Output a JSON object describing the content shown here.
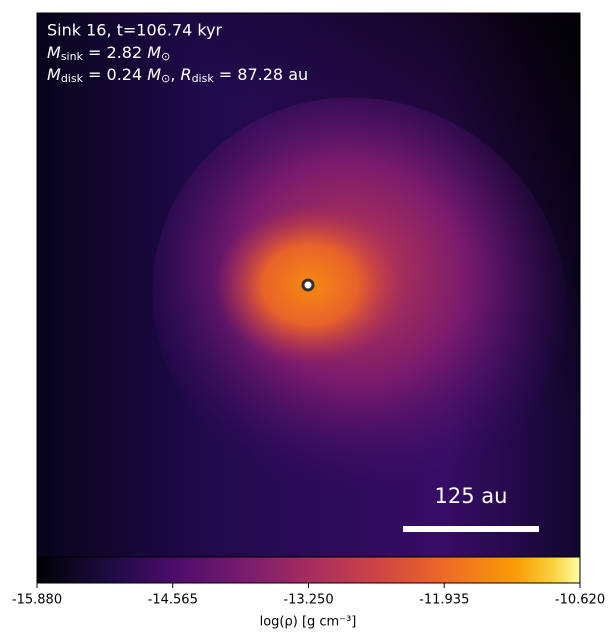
{
  "chart_data": {
    "type": "image",
    "title": "Sink 16, t=106.74 kyr",
    "annotations": [
      {
        "symbol": "M",
        "subscript": "sink",
        "text": " = 2.82 ",
        "unit": "M",
        "unit_subscript": "⊙"
      },
      {
        "symbol": "M",
        "subscript": "disk",
        "text": " = 0.24 ",
        "unit": "M",
        "unit_subscript": "⊙",
        "second_symbol": "R",
        "second_subscript": "disk",
        "second_text": " = 87.28 au"
      }
    ],
    "scale_bar_label": "125 au",
    "colorbar": {
      "label": "log(ρ) [g cm⁻³]",
      "cmap": "inferno",
      "lim": [
        -15.88,
        -10.62
      ],
      "ticks": [
        {
          "value": -15.88,
          "label": "-15.880"
        },
        {
          "value": -14.565,
          "label": "-14.565"
        },
        {
          "value": -13.25,
          "label": "-13.250"
        },
        {
          "value": -11.935,
          "label": "-11.935"
        },
        {
          "value": -10.62,
          "label": "-10.620"
        }
      ]
    }
  }
}
